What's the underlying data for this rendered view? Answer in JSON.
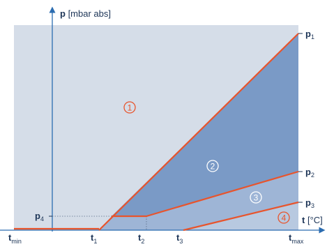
{
  "diagram": {
    "y_axis": {
      "symbol": "p",
      "unit": " [mbar abs]"
    },
    "x_axis": {
      "symbol": "t",
      "unit": " [°C]"
    },
    "x_ticks": [
      {
        "main": "t",
        "sub": "min"
      },
      {
        "main": "t",
        "sub": "1"
      },
      {
        "main": "t",
        "sub": "2"
      },
      {
        "main": "t",
        "sub": "3"
      },
      {
        "main": "t",
        "sub": "max"
      }
    ],
    "right_labels": [
      {
        "main": "p",
        "sub": "1"
      },
      {
        "main": "p",
        "sub": "2"
      },
      {
        "main": "p",
        "sub": "3"
      }
    ],
    "left_label": {
      "main": "p",
      "sub": "4"
    },
    "zones": [
      "1",
      "2",
      "3",
      "4"
    ],
    "colors": {
      "background_light": "#d5dde8",
      "zone_dark": "#7a9ac6",
      "zone_mid": "#9eb5d6",
      "zone_light": "#b8c9e0",
      "boundary_lines": "#e8542c",
      "axis": "#2b6cb0",
      "text": "#1d3557"
    }
  }
}
